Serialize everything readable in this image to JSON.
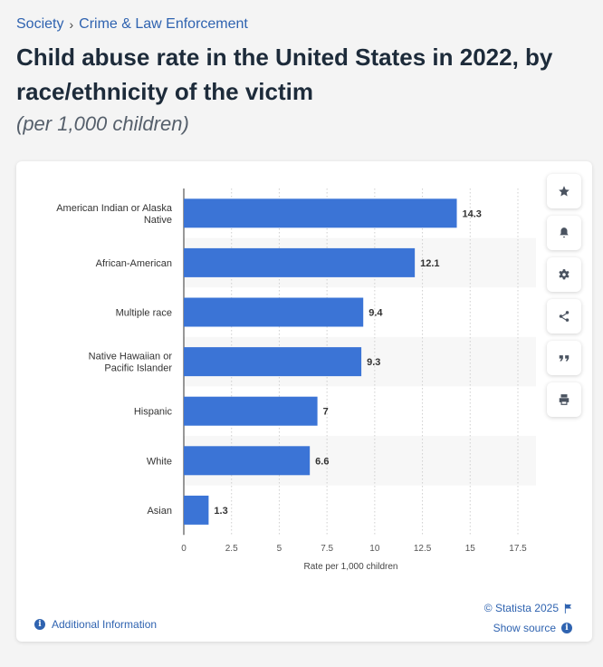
{
  "breadcrumb": {
    "items": [
      "Society",
      "Crime & Law Enforcement"
    ],
    "separator": "›"
  },
  "title": "Child abuse rate in the United States in 2022, by race/ethnicity of the victim",
  "subtitle": "(per 1,000 children)",
  "tools": [
    {
      "name": "favorite",
      "icon": "star-icon"
    },
    {
      "name": "notify",
      "icon": "bell-icon"
    },
    {
      "name": "settings",
      "icon": "gear-icon"
    },
    {
      "name": "share",
      "icon": "share-icon"
    },
    {
      "name": "cite",
      "icon": "quote-icon"
    },
    {
      "name": "print",
      "icon": "print-icon"
    }
  ],
  "footer": {
    "copyright": "© Statista 2025",
    "show_source": "Show source",
    "additional_info": "Additional Information"
  },
  "colors": {
    "bar": "#3b74d6",
    "accent": "#2f63b0",
    "band": "#f7f7f7"
  },
  "chart_data": {
    "type": "bar",
    "orientation": "horizontal",
    "categories": [
      "American Indian or Alaska Native",
      "African-American",
      "Multiple race",
      "Native Hawaiian or Pacific Islander",
      "Hispanic",
      "White",
      "Asian"
    ],
    "values": [
      14.3,
      12.1,
      9.4,
      9.3,
      7,
      6.6,
      1.3
    ],
    "value_labels": [
      "14.3",
      "12.1",
      "9.4",
      "9.3",
      "7",
      "6.6",
      "1.3"
    ],
    "xlabel": "Rate per 1,000 children",
    "xlim": [
      0,
      17.5
    ],
    "xticks": [
      0,
      2.5,
      5,
      7.5,
      10,
      12.5,
      15,
      17.5
    ],
    "xtick_labels": [
      "0",
      "2.5",
      "5",
      "7.5",
      "10",
      "12.5",
      "15",
      "17.5"
    ],
    "grid": true
  }
}
